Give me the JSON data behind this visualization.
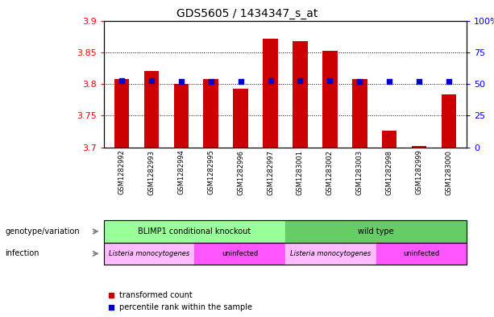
{
  "title": "GDS5605 / 1434347_s_at",
  "samples": [
    "GSM1282992",
    "GSM1282993",
    "GSM1282994",
    "GSM1282995",
    "GSM1282996",
    "GSM1282997",
    "GSM1283001",
    "GSM1283002",
    "GSM1283003",
    "GSM1282998",
    "GSM1282999",
    "GSM1283000"
  ],
  "red_values": [
    3.808,
    3.82,
    3.8,
    3.808,
    3.792,
    3.872,
    3.868,
    3.852,
    3.808,
    3.726,
    3.702,
    3.784
  ],
  "blue_percentiles": [
    52.6,
    52.9,
    52.2,
    51.9,
    51.9,
    52.4,
    52.7,
    52.4,
    52.2,
    52.3,
    52.1,
    52.1
  ],
  "ylim_left": [
    3.7,
    3.9
  ],
  "ylim_right": [
    0,
    100
  ],
  "right_ticks": [
    0,
    25,
    50,
    75,
    100
  ],
  "right_tick_labels": [
    "0",
    "25",
    "50",
    "75",
    "100%"
  ],
  "left_ticks": [
    3.7,
    3.75,
    3.8,
    3.85,
    3.9
  ],
  "bar_color": "#cc0000",
  "dot_color": "#0000cc",
  "genotype_groups": [
    {
      "text": "BLIMP1 conditional knockout",
      "start": 0,
      "end": 5,
      "color": "#99ff99"
    },
    {
      "text": "wild type",
      "start": 6,
      "end": 11,
      "color": "#66cc66"
    }
  ],
  "infection_groups": [
    {
      "text": "Listeria monocytogenes",
      "start": 0,
      "end": 2,
      "color": "#ffbbff"
    },
    {
      "text": "uninfected",
      "start": 3,
      "end": 5,
      "color": "#ff55ff"
    },
    {
      "text": "Listeria monocytogenes",
      "start": 6,
      "end": 8,
      "color": "#ffbbff"
    },
    {
      "text": "uninfected",
      "start": 9,
      "end": 11,
      "color": "#ff55ff"
    }
  ],
  "genotype_label": "genotype/variation",
  "infection_label": "infection",
  "legend_items": [
    {
      "label": "transformed count",
      "color": "#cc0000"
    },
    {
      "label": "percentile rank within the sample",
      "color": "#0000cc"
    }
  ]
}
